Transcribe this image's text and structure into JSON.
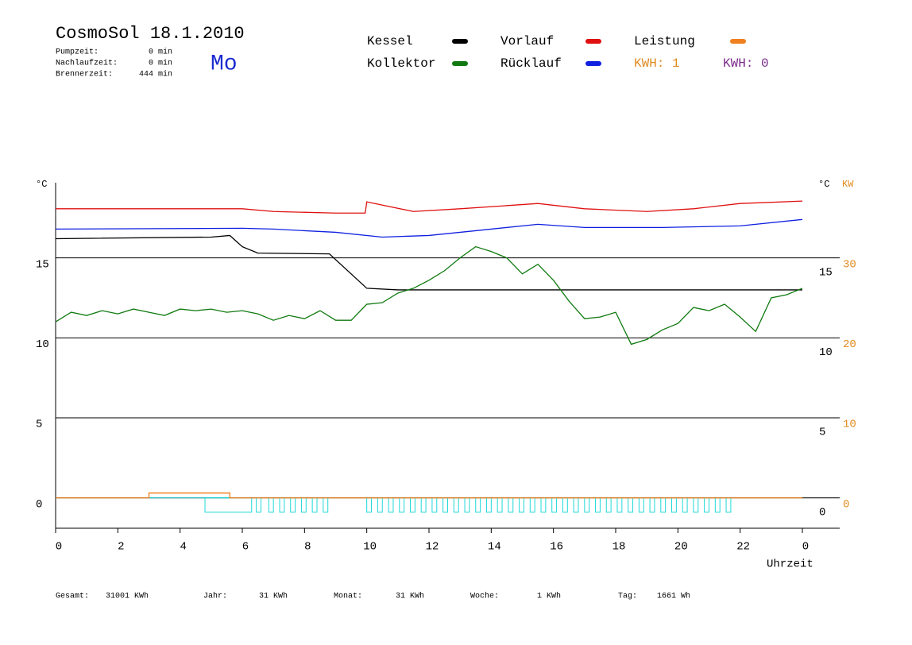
{
  "header": {
    "title": "CosmoSol 18.1.2010",
    "day": "Mo",
    "stats": [
      {
        "label": "Pumpzeit:",
        "value": "0 min"
      },
      {
        "label": "Nachlaufzeit:",
        "value": "0 min"
      },
      {
        "label": "Brennerzeit:",
        "value": "444 min"
      }
    ]
  },
  "legend_extra": [
    {
      "text": "KWH: 1",
      "color": "#e08a1e"
    },
    {
      "text": "KWH: 0",
      "color": "#7a2a8a"
    }
  ],
  "footer": [
    {
      "label": "Gesamt:",
      "value": "31001 KWh"
    },
    {
      "label": "Jahr:",
      "value": "31 KWh"
    },
    {
      "label": "Monat:",
      "value": "31 KWh"
    },
    {
      "label": "Woche:",
      "value": "1 KWh"
    },
    {
      "label": "Tag:",
      "value": "1661 Wh"
    }
  ],
  "chart_data": {
    "type": "line",
    "y_label": "°C",
    "y_label_right": "°C",
    "y2_label": "KW",
    "x_label": "Uhrzeit",
    "xlim": [
      0,
      25.2
    ],
    "xticks": [
      0,
      2,
      4,
      6,
      8,
      10,
      12,
      14,
      16,
      18,
      20,
      22,
      {
        "value": 24,
        "label": "0"
      }
    ],
    "ylim": [
      -1.9,
      19.7
    ],
    "yticks": [
      0,
      5,
      10,
      15
    ],
    "y2lim": [
      -3.8,
      39.4
    ],
    "y2ticks": [
      0,
      10,
      20,
      30
    ],
    "y2color": "#e08a1e",
    "grid": true,
    "series": [
      {
        "name": "Kessel",
        "color": "#000000",
        "x": [
          0,
          5,
          5.6,
          6,
          6.5,
          8.8,
          10,
          11,
          24
        ],
        "values": [
          16.2,
          16.3,
          16.4,
          15.7,
          15.3,
          15.25,
          13.1,
          13.0,
          13.0
        ]
      },
      {
        "name": "Vorlauf",
        "color": "#e01010",
        "x": [
          0,
          6,
          7,
          9,
          9.95,
          10,
          11.5,
          13,
          15.5,
          17,
          19,
          20.5,
          22,
          24
        ],
        "values": [
          18.07,
          18.07,
          17.9,
          17.8,
          17.8,
          18.5,
          17.9,
          18.07,
          18.4,
          18.07,
          17.9,
          18.07,
          18.4,
          18.55
        ]
      },
      {
        "name": "Leistung",
        "color": "#f08020",
        "axis": "y2",
        "x": [
          0,
          3,
          3,
          5.6,
          5.6,
          24
        ],
        "values": [
          0,
          0,
          0.6,
          0.6,
          0,
          0
        ]
      },
      {
        "name": "Kollektor",
        "color": "#107a10",
        "x": [
          0,
          0.5,
          1,
          1.5,
          2,
          2.5,
          3,
          3.5,
          4,
          4.5,
          5,
          5.5,
          6,
          6.5,
          7,
          7.5,
          8,
          8.5,
          9,
          9.5,
          10,
          10.5,
          11,
          11.5,
          12,
          12.5,
          13,
          13.5,
          14,
          14.5,
          15,
          15.5,
          16,
          16.5,
          17,
          17.5,
          18,
          18.5,
          19,
          19.5,
          20,
          20.5,
          21,
          21.5,
          22,
          22.5,
          23,
          23.5,
          24
        ],
        "values": [
          11.0,
          11.6,
          11.4,
          11.7,
          11.5,
          11.8,
          11.6,
          11.4,
          11.8,
          11.7,
          11.8,
          11.6,
          11.7,
          11.5,
          11.1,
          11.4,
          11.2,
          11.7,
          11.1,
          11.1,
          12.1,
          12.2,
          12.8,
          13.1,
          13.6,
          14.2,
          15.0,
          15.7,
          15.4,
          15.0,
          14.0,
          14.6,
          13.6,
          12.3,
          11.2,
          11.3,
          11.6,
          9.6,
          9.9,
          10.5,
          10.9,
          11.9,
          11.7,
          12.1,
          11.3,
          10.4,
          12.5,
          12.7,
          13.1
        ]
      },
      {
        "name": "Rücklauf",
        "color": "#1020e0",
        "x": [
          0,
          6,
          7,
          9,
          10.5,
          12,
          13.5,
          15.5,
          17,
          19.5,
          22,
          24
        ],
        "values": [
          16.8,
          16.85,
          16.8,
          16.6,
          16.3,
          16.4,
          16.7,
          17.1,
          16.9,
          16.9,
          17.0,
          17.4
        ]
      }
    ],
    "pump": {
      "color": "#20d8d8",
      "base": 0,
      "low": -0.9,
      "xend": 24,
      "intervals": [
        [
          4.8,
          6.3
        ],
        [
          6.45,
          6.6
        ],
        [
          6.85,
          7.0
        ],
        [
          7.2,
          7.35
        ],
        [
          7.55,
          7.7
        ],
        [
          7.9,
          8.05
        ],
        [
          8.25,
          8.4
        ],
        [
          8.6,
          8.75
        ],
        [
          10.0,
          10.15
        ],
        [
          10.35,
          10.5
        ],
        [
          10.7,
          10.85
        ],
        [
          11.05,
          11.2
        ],
        [
          11.4,
          11.55
        ],
        [
          11.75,
          11.9
        ],
        [
          12.1,
          12.25
        ],
        [
          12.45,
          12.6
        ],
        [
          12.8,
          12.95
        ],
        [
          13.15,
          13.3
        ],
        [
          13.5,
          13.65
        ],
        [
          13.85,
          14.0
        ],
        [
          14.2,
          14.35
        ],
        [
          14.55,
          14.7
        ],
        [
          14.9,
          15.05
        ],
        [
          15.25,
          15.4
        ],
        [
          15.6,
          15.75
        ],
        [
          15.95,
          16.1
        ],
        [
          16.3,
          16.45
        ],
        [
          16.65,
          16.8
        ],
        [
          17.0,
          17.15
        ],
        [
          17.35,
          17.5
        ],
        [
          17.7,
          17.85
        ],
        [
          18.05,
          18.2
        ],
        [
          18.4,
          18.55
        ],
        [
          18.75,
          18.9
        ],
        [
          19.1,
          19.25
        ],
        [
          19.45,
          19.6
        ],
        [
          19.8,
          19.95
        ],
        [
          20.15,
          20.3
        ],
        [
          20.5,
          20.65
        ],
        [
          20.85,
          21.0
        ],
        [
          21.2,
          21.35
        ],
        [
          21.55,
          21.7
        ]
      ]
    }
  }
}
